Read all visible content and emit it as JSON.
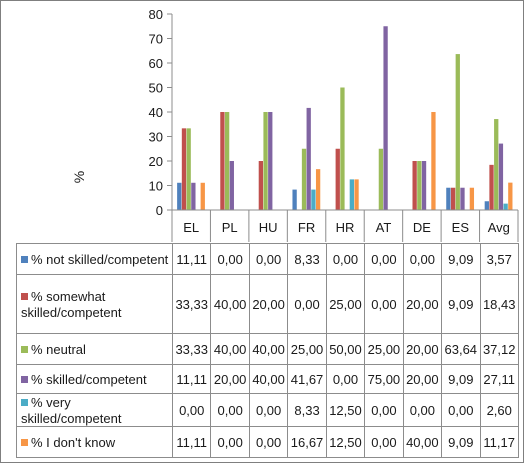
{
  "chart_data": {
    "type": "bar",
    "categories": [
      "EL",
      "PL",
      "HU",
      "FR",
      "HR",
      "AT",
      "DE",
      "ES",
      "Avg"
    ],
    "ylabel": "%",
    "ylim": [
      0,
      80
    ],
    "yticks": [
      "0",
      "10",
      "20",
      "30",
      "40",
      "50",
      "60",
      "70",
      "80"
    ],
    "grid": false,
    "legend": "data table below chart",
    "series": [
      {
        "name": "% not skilled/competent",
        "color": "#4f81bd",
        "values": [
          11.11,
          0,
          0,
          8.33,
          0,
          0,
          0,
          9.09,
          3.57
        ],
        "labels": [
          "11,11",
          "0,00",
          "0,00",
          "8,33",
          "0,00",
          "0,00",
          "0,00",
          "9,09",
          "3,57"
        ]
      },
      {
        "name": "% somewhat skilled/competent",
        "color": "#c0504d",
        "values": [
          33.33,
          40,
          20,
          0,
          25,
          0,
          20,
          9.09,
          18.43
        ],
        "labels": [
          "33,33",
          "40,00",
          "20,00",
          "0,00",
          "25,00",
          "0,00",
          "20,00",
          "9,09",
          "18,43"
        ]
      },
      {
        "name": "% neutral",
        "color": "#9bbb59",
        "values": [
          33.33,
          40,
          40,
          25,
          50,
          25,
          20,
          63.64,
          37.12
        ],
        "labels": [
          "33,33",
          "40,00",
          "40,00",
          "25,00",
          "50,00",
          "25,00",
          "20,00",
          "63,64",
          "37,12"
        ]
      },
      {
        "name": "% skilled/competent",
        "color": "#8064a2",
        "values": [
          11.11,
          20,
          40,
          41.67,
          0,
          75,
          20,
          9.09,
          27.11
        ],
        "labels": [
          "11,11",
          "20,00",
          "40,00",
          "41,67",
          "0,00",
          "75,00",
          "20,00",
          "9,09",
          "27,11"
        ]
      },
      {
        "name": "% very skilled/competent",
        "color": "#4bacc6",
        "values": [
          0,
          0,
          0,
          8.33,
          12.5,
          0,
          0,
          0,
          2.6
        ],
        "labels": [
          "0,00",
          "0,00",
          "0,00",
          "8,33",
          "12,50",
          "0,00",
          "0,00",
          "0,00",
          "2,60"
        ]
      },
      {
        "name": "% I don't know",
        "color": "#f79646",
        "values": [
          11.11,
          0,
          0,
          16.67,
          12.5,
          0,
          40,
          9.09,
          11.17
        ],
        "labels": [
          "11,11",
          "0,00",
          "0,00",
          "16,67",
          "12,50",
          "0,00",
          "40,00",
          "9,09",
          "11,17"
        ]
      }
    ]
  }
}
